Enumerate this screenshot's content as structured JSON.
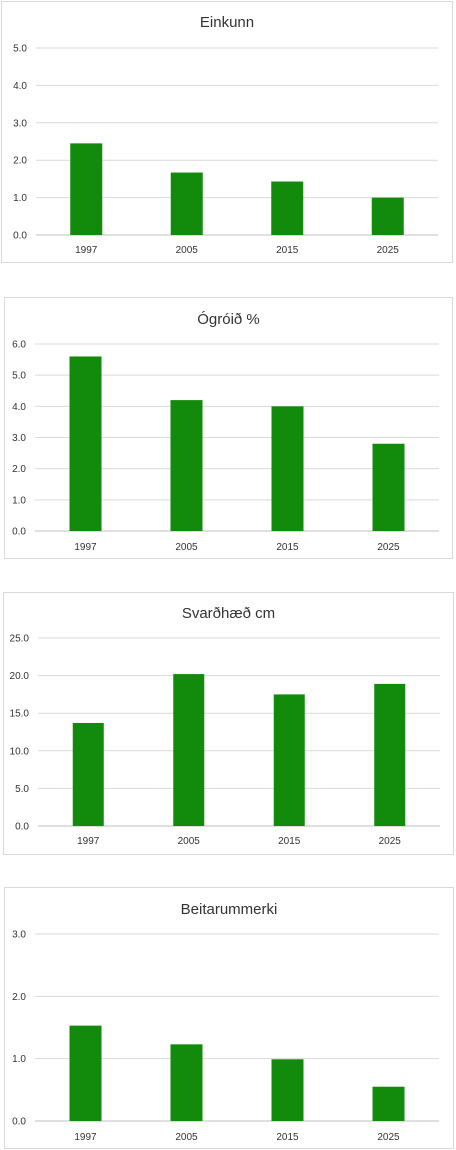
{
  "chart_data": [
    {
      "type": "bar",
      "title": "Einkunn",
      "categories": [
        "1997",
        "2005",
        "2015",
        "2025"
      ],
      "values": [
        2.45,
        1.67,
        1.43,
        1.0
      ],
      "ylim": [
        0,
        5
      ],
      "yticks": [
        "0.0",
        "1.0",
        "2.0",
        "3.0",
        "4.0",
        "5.0"
      ],
      "grid": true,
      "legend": "none",
      "color": "#128a0c"
    },
    {
      "type": "bar",
      "title": "Ógróið %",
      "categories": [
        "1997",
        "2005",
        "2015",
        "2025"
      ],
      "values": [
        5.6,
        4.2,
        4.0,
        2.8
      ],
      "ylim": [
        0,
        6
      ],
      "yticks": [
        "0.0",
        "1.0",
        "2.0",
        "3.0",
        "4.0",
        "5.0",
        "6.0"
      ],
      "grid": true,
      "legend": "none",
      "color": "#128a0c"
    },
    {
      "type": "bar",
      "title": "Svarðhæð cm",
      "categories": [
        "1997",
        "2005",
        "2015",
        "2025"
      ],
      "values": [
        13.7,
        20.2,
        17.5,
        18.9
      ],
      "ylim": [
        0,
        25
      ],
      "yticks": [
        "0.0",
        "5.0",
        "10.0",
        "15.0",
        "20.0",
        "25.0"
      ],
      "grid": true,
      "legend": "none",
      "color": "#128a0c"
    },
    {
      "type": "bar",
      "title": "Beitarummerki",
      "categories": [
        "1997",
        "2005",
        "2015",
        "2025"
      ],
      "values": [
        1.53,
        1.23,
        0.99,
        0.55
      ],
      "ylim": [
        0,
        3
      ],
      "yticks": [
        "0.0",
        "1.0",
        "2.0",
        "3.0"
      ],
      "grid": true,
      "legend": "none",
      "color": "#128a0c"
    }
  ]
}
